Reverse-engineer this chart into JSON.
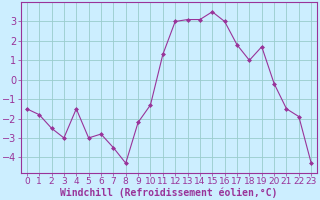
{
  "x": [
    0,
    1,
    2,
    3,
    4,
    5,
    6,
    7,
    8,
    9,
    10,
    11,
    12,
    13,
    14,
    15,
    16,
    17,
    18,
    19,
    20,
    21,
    22,
    23
  ],
  "y": [
    -1.5,
    -1.8,
    -2.5,
    -3.0,
    -1.5,
    -3.0,
    -2.8,
    -3.5,
    -4.3,
    -2.2,
    -1.3,
    1.3,
    3.0,
    3.1,
    3.1,
    3.5,
    3.0,
    1.8,
    1.0,
    1.7,
    -0.2,
    -1.5,
    -1.9,
    -4.3
  ],
  "line_color": "#993399",
  "marker": "D",
  "marker_size": 2,
  "bg_color": "#cceeff",
  "grid_color": "#99cccc",
  "xlabel": "Windchill (Refroidissement éolien,°C)",
  "xlabel_color": "#993399",
  "xlim": [
    -0.5,
    23.5
  ],
  "ylim": [
    -4.8,
    4.0
  ],
  "yticks": [
    -4,
    -3,
    -2,
    -1,
    0,
    1,
    2,
    3
  ],
  "xticks": [
    0,
    1,
    2,
    3,
    4,
    5,
    6,
    7,
    8,
    9,
    10,
    11,
    12,
    13,
    14,
    15,
    16,
    17,
    18,
    19,
    20,
    21,
    22,
    23
  ],
  "tick_color": "#993399",
  "spine_color": "#993399",
  "tick_fontsize": 6.5,
  "xlabel_fontsize": 7.0
}
